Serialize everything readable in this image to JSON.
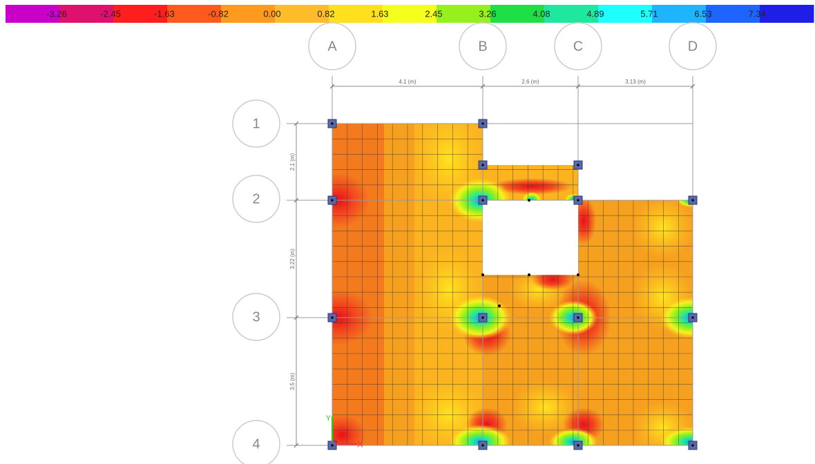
{
  "legend": {
    "labels": [
      "-3.26",
      "-2.45",
      "-1.63",
      "-0.82",
      "0.00",
      "0.82",
      "1.63",
      "2.45",
      "3.26",
      "4.08",
      "4.89",
      "5.71",
      "6.53",
      "7.34"
    ],
    "colors": [
      "#c800c8",
      "#e0106e",
      "#ff1e1e",
      "#ff5a1e",
      "#ff9a1e",
      "#ffbc2a",
      "#ffe01e",
      "#f4ff1e",
      "#96f01e",
      "#1ee046",
      "#1ee8a0",
      "#1effff",
      "#1eb4ff",
      "#1e64ff",
      "#1e1ee6"
    ]
  },
  "grid": {
    "columns": [
      "A",
      "B",
      "C",
      "D"
    ],
    "rows": [
      "1",
      "2",
      "3",
      "4"
    ]
  },
  "dimensions": {
    "horizontal": [
      "4.1 (m)",
      "2.6 (m)",
      "3.13 (m)"
    ],
    "vertical": [
      "2.1 (m)",
      "3.22 (m)",
      "3.5 (m)"
    ]
  },
  "axes": {
    "x": "X",
    "y": "Y"
  }
}
